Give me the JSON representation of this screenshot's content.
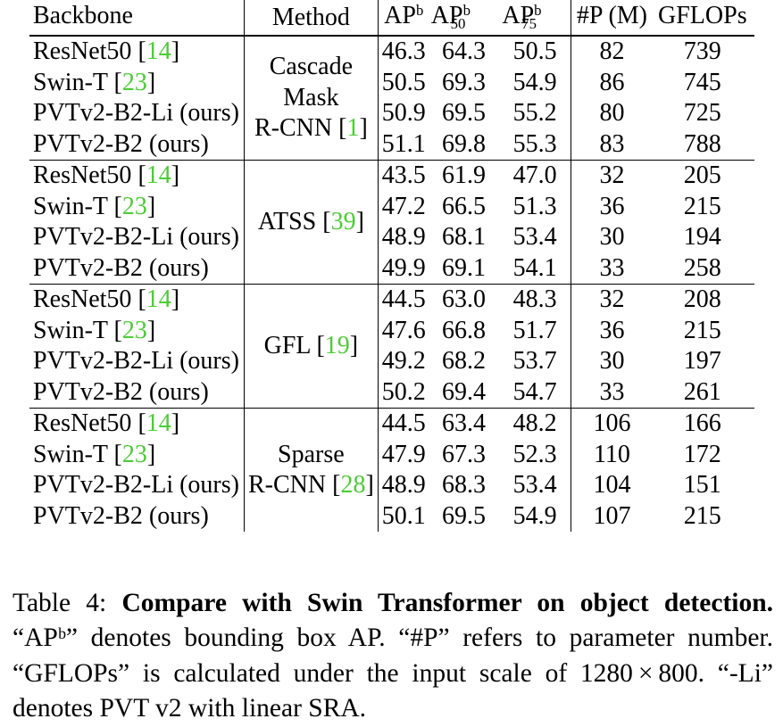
{
  "table": {
    "headers": {
      "backbone": "Backbone",
      "method": "Method",
      "ap_base": "AP",
      "ap_sup": "b",
      "ap50_sub": "50",
      "ap75_sub": "75",
      "params": "#P (M)",
      "gflops": "GFLOPs"
    },
    "groups": [
      {
        "method_lines": [
          "Cascade",
          "Mask",
          "R-CNN "
        ],
        "method_ref": "1",
        "rows": [
          {
            "name": "ResNet50 ",
            "ref": "14",
            "ap": "46.3",
            "ap50": "64.3",
            "ap75": "50.5",
            "params": "82",
            "gflops": "739",
            "bold": []
          },
          {
            "name": "Swin-T ",
            "ref": "23",
            "ap": "50.5",
            "ap50": "69.3",
            "ap75": "54.9",
            "params": "86",
            "gflops": "745",
            "bold": []
          },
          {
            "name": "PVTv2-B2-Li (ours)",
            "ref": "",
            "ap": "50.9",
            "ap50": "69.5",
            "ap75": "55.2",
            "params": "80",
            "gflops": "725",
            "bold": [
              "params",
              "gflops"
            ]
          },
          {
            "name": "PVTv2-B2 (ours)",
            "ref": "",
            "ap": "51.1",
            "ap50": "69.8",
            "ap75": "55.3",
            "params": "83",
            "gflops": "788",
            "bold": [
              "ap",
              "ap50",
              "ap75"
            ]
          }
        ]
      },
      {
        "method_lines": [
          "ATSS "
        ],
        "method_ref": "39",
        "rows": [
          {
            "name": "ResNet50 ",
            "ref": "14",
            "ap": "43.5",
            "ap50": "61.9",
            "ap75": "47.0",
            "params": "32",
            "gflops": "205",
            "bold": []
          },
          {
            "name": "Swin-T ",
            "ref": "23",
            "ap": "47.2",
            "ap50": "66.5",
            "ap75": "51.3",
            "params": "36",
            "gflops": "215",
            "bold": []
          },
          {
            "name": "PVTv2-B2-Li (ours)",
            "ref": "",
            "ap": "48.9",
            "ap50": "68.1",
            "ap75": "53.4",
            "params": "30",
            "gflops": "194",
            "bold": [
              "params",
              "gflops"
            ]
          },
          {
            "name": "PVTv2-B2 (ours)",
            "ref": "",
            "ap": "49.9",
            "ap50": "69.1",
            "ap75": "54.1",
            "params": "33",
            "gflops": "258",
            "bold": [
              "ap",
              "ap50",
              "ap75"
            ]
          }
        ]
      },
      {
        "method_lines": [
          "GFL "
        ],
        "method_ref": "19",
        "rows": [
          {
            "name": "ResNet50 ",
            "ref": "14",
            "ap": "44.5",
            "ap50": "63.0",
            "ap75": "48.3",
            "params": "32",
            "gflops": "208",
            "bold": []
          },
          {
            "name": "Swin-T ",
            "ref": "23",
            "ap": "47.6",
            "ap50": "66.8",
            "ap75": "51.7",
            "params": "36",
            "gflops": "215",
            "bold": []
          },
          {
            "name": "PVTv2-B2-Li (ours)",
            "ref": "",
            "ap": "49.2",
            "ap50": "68.2",
            "ap75": "53.7",
            "params": "30",
            "gflops": "197",
            "bold": [
              "params",
              "gflops"
            ]
          },
          {
            "name": "PVTv2-B2 (ours)",
            "ref": "",
            "ap": "50.2",
            "ap50": "69.4",
            "ap75": "54.7",
            "params": "33",
            "gflops": "261",
            "bold": [
              "ap",
              "ap50",
              "ap75"
            ]
          }
        ]
      },
      {
        "method_lines": [
          "Sparse",
          "R-CNN "
        ],
        "method_ref": "28",
        "rows": [
          {
            "name": "ResNet50 ",
            "ref": "14",
            "ap": "44.5",
            "ap50": "63.4",
            "ap75": "48.2",
            "params": "106",
            "gflops": "166",
            "bold": []
          },
          {
            "name": "Swin-T ",
            "ref": "23",
            "ap": "47.9",
            "ap50": "67.3",
            "ap75": "52.3",
            "params": "110",
            "gflops": "172",
            "bold": []
          },
          {
            "name": "PVTv2-B2-Li (ours)",
            "ref": "",
            "ap": "48.9",
            "ap50": "68.3",
            "ap75": "53.4",
            "params": "104",
            "gflops": "151",
            "bold": [
              "params",
              "gflops"
            ]
          },
          {
            "name": "PVTv2-B2 (ours)",
            "ref": "",
            "ap": "50.1",
            "ap50": "69.5",
            "ap75": "54.9",
            "params": "107",
            "gflops": "215",
            "bold": [
              "ap",
              "ap50",
              "ap75"
            ]
          }
        ]
      }
    ]
  },
  "caption": {
    "label": "Table 4: ",
    "bold_title": "Compare with Swin Transformer on object detection.",
    "text": " “APᵇ” denotes bounding box AP. “#P” refers to parameter number. “GFLOPs” is calculated under the input scale of 1280 × 800. “-Li” denotes PVT v2 with linear SRA."
  }
}
